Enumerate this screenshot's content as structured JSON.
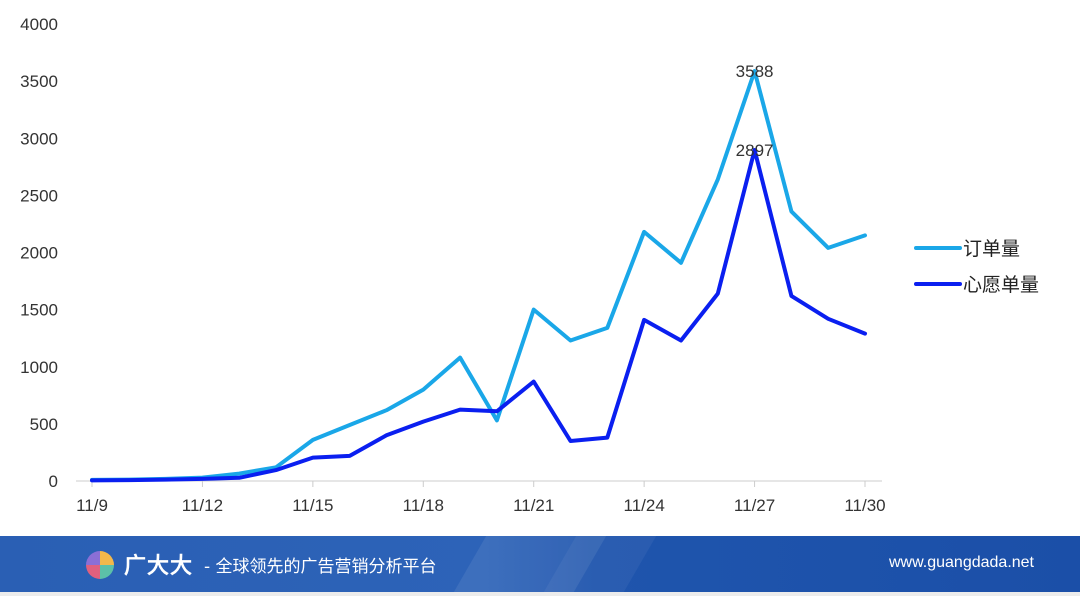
{
  "chart_data": {
    "type": "line",
    "title": "",
    "xlabel": "",
    "ylabel": "",
    "x": [
      "11/9",
      "11/10",
      "11/11",
      "11/12",
      "11/13",
      "11/14",
      "11/15",
      "11/16",
      "11/17",
      "11/18",
      "11/19",
      "11/20",
      "11/21",
      "11/22",
      "11/23",
      "11/24",
      "11/25",
      "11/26",
      "11/27",
      "11/28",
      "11/29",
      "11/30"
    ],
    "x_tick_labels": [
      "11/9",
      "11/12",
      "11/15",
      "11/18",
      "11/21",
      "11/24",
      "11/27",
      "11/30"
    ],
    "ylim": [
      0,
      4000
    ],
    "y_ticks": [
      "0",
      "500",
      "1000",
      "1500",
      "2000",
      "2500",
      "3000",
      "3500",
      "4000"
    ],
    "grid": false,
    "legend_position": "right",
    "series": [
      {
        "name": "订单量",
        "color": "#1aa7e8",
        "values": [
          10,
          12,
          18,
          30,
          65,
          120,
          360,
          490,
          620,
          800,
          1080,
          530,
          1500,
          1230,
          1340,
          2180,
          1910,
          2640,
          3588,
          2360,
          2040,
          2150
        ]
      },
      {
        "name": "心愿单量",
        "color": "#0a1ff0",
        "values": [
          5,
          8,
          12,
          18,
          28,
          95,
          205,
          220,
          400,
          520,
          625,
          610,
          870,
          350,
          380,
          1410,
          1230,
          1640,
          2897,
          1620,
          1420,
          1290
        ]
      }
    ],
    "annotations": [
      {
        "series": 0,
        "index": 18,
        "text": "3588"
      },
      {
        "series": 1,
        "index": 18,
        "text": "2897"
      }
    ]
  },
  "footer": {
    "brand_name": "广大大",
    "tagline": "- 全球领先的广告营销分析平台",
    "url": "www.guangdada.net"
  }
}
